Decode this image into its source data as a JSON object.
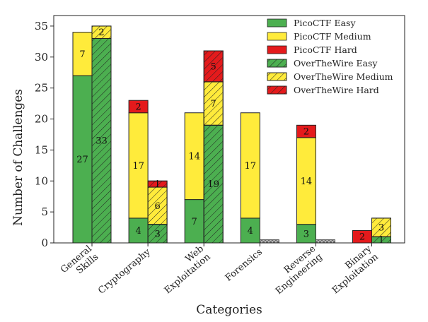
{
  "chart_data": {
    "type": "bar",
    "stacked": true,
    "grouped": true,
    "xlabel": "Categories",
    "ylabel": "Number of Challenges",
    "ylim": [
      0,
      36.7
    ],
    "yticks": [
      0,
      5,
      10,
      15,
      20,
      25,
      30,
      35
    ],
    "categories": [
      "General\nSkills",
      "Cryptography",
      "Web\nExploitation",
      "Forensics",
      "Reverse\nEngineering",
      "Binary\nExploitation"
    ],
    "legend_position": "top-right",
    "grid": false,
    "colors": {
      "easy": "#4caf50",
      "medium": "#ffeb3b",
      "hard": "#e41a1c",
      "placeholder": "#bdbdbd"
    },
    "series": [
      {
        "name": "PicoCTF Easy",
        "group": "PicoCTF",
        "level": "easy",
        "values": [
          27,
          4,
          7,
          4,
          3,
          0
        ]
      },
      {
        "name": "PicoCTF Medium",
        "group": "PicoCTF",
        "level": "medium",
        "values": [
          7,
          17,
          14,
          17,
          14,
          0
        ]
      },
      {
        "name": "PicoCTF Hard",
        "group": "PicoCTF",
        "level": "hard",
        "values": [
          0,
          2,
          0,
          0,
          2,
          2
        ]
      },
      {
        "name": "OverTheWire Easy",
        "group": "OverTheWire",
        "level": "easy",
        "values": [
          33,
          3,
          19,
          0,
          0,
          1
        ]
      },
      {
        "name": "OverTheWire Medium",
        "group": "OverTheWire",
        "level": "medium",
        "values": [
          2,
          6,
          7,
          0,
          0,
          3
        ]
      },
      {
        "name": "OverTheWire Hard",
        "group": "OverTheWire",
        "level": "hard",
        "values": [
          0,
          1,
          5,
          0,
          0,
          0
        ]
      }
    ],
    "placeholders": [
      {
        "group": "OverTheWire",
        "category_index": 3,
        "value": 0.5
      },
      {
        "group": "OverTheWire",
        "category_index": 4,
        "value": 0.5
      }
    ]
  }
}
